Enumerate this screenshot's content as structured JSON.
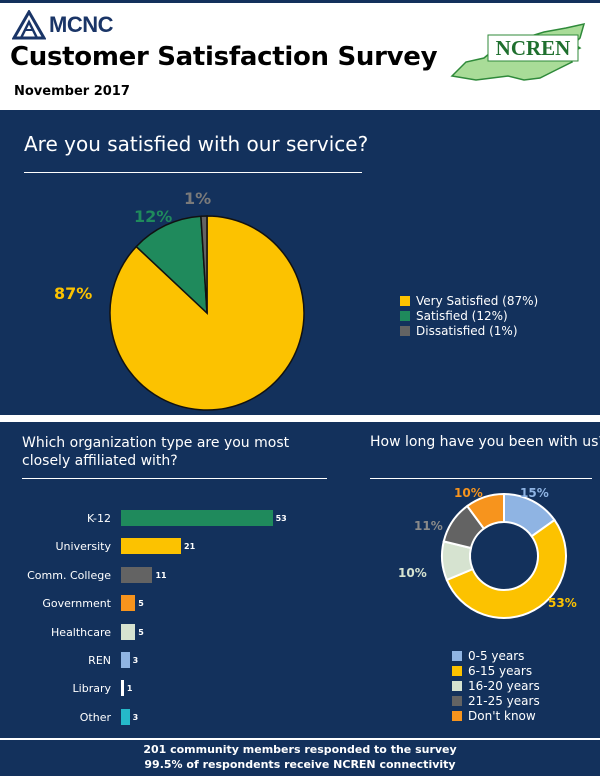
{
  "header": {
    "brand": "MCNC",
    "title": "Customer Satisfaction Survey",
    "date": "November 2017",
    "partner_logo": "NCREN"
  },
  "colors": {
    "navy": "#13315c",
    "yellow": "#fcc200",
    "green": "#1f8a5c",
    "gray": "#636363",
    "orange": "#f7941d",
    "light_green": "#d6e3d0",
    "light_blue": "#8fb4e3",
    "teal": "#25b9c9"
  },
  "chart_data": [
    {
      "type": "pie",
      "title": "Are you satisfied with our service?",
      "categories": [
        "Very Satisfied",
        "Satisfied",
        "Dissatisfied"
      ],
      "values": [
        87,
        12,
        1
      ],
      "colors": [
        "#fcc200",
        "#1f8a5c",
        "#636363"
      ],
      "data_labels": [
        "87%",
        "12%",
        "1%"
      ],
      "legend": [
        "Very Satisfied (87%)",
        "Satisfied (12%)",
        "Dissatisfied (1%)"
      ],
      "legend_position": "right"
    },
    {
      "type": "bar",
      "orientation": "horizontal",
      "title": "Which organization type are you most closely affiliated with?",
      "categories": [
        "K-12",
        "University",
        "Comm. College",
        "Government",
        "Healthcare",
        "REN",
        "Library",
        "Other"
      ],
      "values": [
        53,
        21,
        11,
        5,
        5,
        3,
        1,
        3
      ],
      "colors": [
        "#1f8a5c",
        "#fcc200",
        "#636363",
        "#f7941d",
        "#d6e3d0",
        "#8fb4e3",
        "#ffffff",
        "#25b9c9"
      ]
    },
    {
      "type": "pie",
      "variant": "donut",
      "title": "How long have you been with us?",
      "categories": [
        "0-5 years",
        "6-15 years",
        "16-20 years",
        "21-25 years",
        "Don't know"
      ],
      "values": [
        15,
        53,
        10,
        11,
        10
      ],
      "colors": [
        "#8fb4e3",
        "#fcc200",
        "#d6e3d0",
        "#636363",
        "#f7941d"
      ],
      "data_labels": [
        "15%",
        "53%",
        "10%",
        "11%",
        "10%"
      ],
      "legend_position": "bottom-right"
    }
  ],
  "footer": {
    "line1": "201 community members responded to the survey",
    "line2": "99.5% of respondents receive NCREN connectivity"
  }
}
